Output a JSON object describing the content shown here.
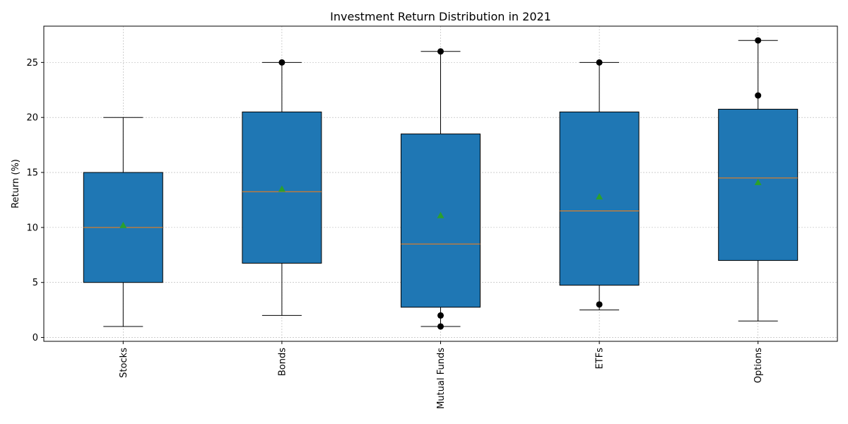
{
  "chart_data": {
    "type": "box",
    "title": "Investment Return Distribution in 2021",
    "xlabel": "",
    "ylabel": "Return (%)",
    "ylim": [
      -0.35,
      28.3
    ],
    "yticks": [
      0,
      5,
      10,
      15,
      20,
      25
    ],
    "grid": true,
    "categories": [
      "Stocks",
      "Bonds",
      "Mutual Funds",
      "ETFs",
      "Options"
    ],
    "boxes": [
      {
        "name": "Stocks",
        "whisker_low": 1,
        "q1": 5,
        "median": 10,
        "q3": 15,
        "whisker_high": 20,
        "mean": 10.2,
        "outliers": []
      },
      {
        "name": "Bonds",
        "whisker_low": 2,
        "q1": 6.75,
        "median": 13.25,
        "q3": 20.5,
        "whisker_high": 25,
        "mean": 13.5,
        "outliers": [
          25
        ]
      },
      {
        "name": "Mutual Funds",
        "whisker_low": 1,
        "q1": 2.75,
        "median": 8.5,
        "q3": 18.5,
        "whisker_high": 26,
        "mean": 11.1,
        "outliers": [
          26,
          2,
          1
        ]
      },
      {
        "name": "ETFs",
        "whisker_low": 2.5,
        "q1": 4.75,
        "median": 11.5,
        "q3": 20.5,
        "whisker_high": 25,
        "mean": 12.8,
        "outliers": [
          25,
          3
        ]
      },
      {
        "name": "Options",
        "whisker_low": 1.5,
        "q1": 7,
        "median": 14.5,
        "q3": 20.75,
        "whisker_high": 27,
        "mean": 14.1,
        "outliers": [
          27,
          22
        ]
      }
    ],
    "colors": {
      "box_fill": "#1f77b4",
      "median": "#ff7f0e",
      "mean_marker": "#2ca02c",
      "outlier": "#000000",
      "grid": "#b0b0b0"
    }
  }
}
